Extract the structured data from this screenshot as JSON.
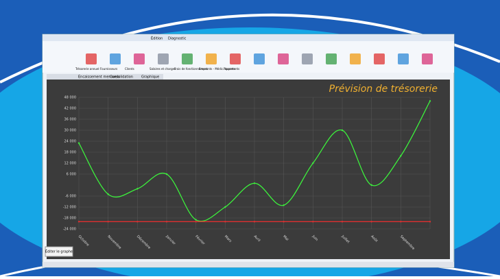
{
  "menu": [
    "Édition",
    "Diagnostic"
  ],
  "toolbar": [
    "Trésorerie annuel",
    "Fournisseurs",
    "Clients",
    "Salaires et charges",
    "Frais de fonctionnement",
    "Emprunts - Médic. apports",
    "Placements"
  ],
  "tabs": [
    "Encaissement mensuels",
    "Consolidation",
    "Graphique"
  ],
  "button": "Éditer le graphe",
  "chart_data": {
    "type": "line",
    "title": "Prévision de trésorerie",
    "categories": [
      "Octobre",
      "Novembre",
      "Décembre",
      "Janvier",
      "Février",
      "Mars",
      "Avril",
      "Mai",
      "Juin",
      "Juillet",
      "Août",
      "Septembre",
      null
    ],
    "series": [
      {
        "color": "#3cf03c",
        "values": [
          23000,
          -5000,
          -2000,
          6000,
          -19000,
          -12000,
          1000,
          -11000,
          12000,
          30000,
          0,
          16000,
          46000
        ]
      },
      {
        "color": "#e03030",
        "values": [
          -20000,
          -20000,
          -20000,
          -20000,
          -20000,
          -20000,
          -20000,
          -20000,
          -20000,
          -20000,
          -20000,
          -20000,
          -20000
        ]
      }
    ],
    "ylim": [
      -24000,
      48000
    ],
    "yticks": [
      {
        "value": 48000,
        "label": "48 000"
      },
      {
        "value": 42000,
        "label": "42 000"
      },
      {
        "value": 36000,
        "label": "36 000"
      },
      {
        "value": 30000,
        "label": "30 000"
      },
      {
        "value": 24000,
        "label": "24 000"
      },
      {
        "value": 18000,
        "label": "18 000"
      },
      {
        "value": 12000,
        "label": "12 000"
      },
      {
        "value": 6000,
        "label": "6 000"
      },
      {
        "value": -6000,
        "label": "-6 000"
      },
      {
        "value": -12000,
        "label": "-12 000"
      },
      {
        "value": -18000,
        "label": "-18 000"
      },
      {
        "value": -24000,
        "label": "-24 000"
      }
    ],
    "grid": true
  }
}
